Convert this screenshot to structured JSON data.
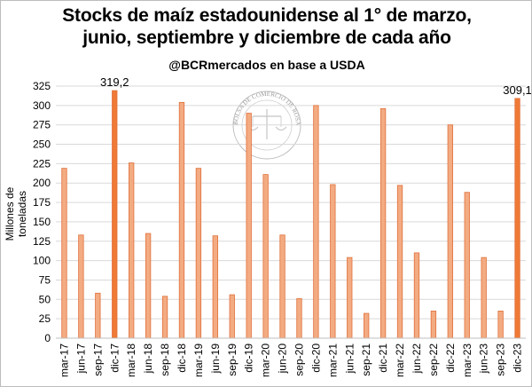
{
  "chart_data": {
    "type": "bar",
    "title_line1": "Stocks de maíz estadounidense al 1° de marzo,",
    "title_line2": "junio, septiembre y diciembre de cada año",
    "subtitle": "@BCRmercados en base a USDA",
    "ylabel": "Millones de toneladas",
    "xlabel": "",
    "ylim": [
      0,
      325
    ],
    "yticks": [
      0,
      25,
      50,
      75,
      100,
      125,
      150,
      175,
      200,
      225,
      250,
      275,
      300,
      325
    ],
    "grid": true,
    "legend": "none",
    "categories": [
      "mar-17",
      "jun-17",
      "sep-17",
      "dic-17",
      "mar-18",
      "jun-18",
      "sep-18",
      "dic-18",
      "mar-19",
      "jun-19",
      "sep-19",
      "dic-19",
      "mar-20",
      "jun-20",
      "sep-20",
      "dic-20",
      "mar-21",
      "jun-21",
      "sep-21",
      "dic-21",
      "mar-22",
      "jun-22",
      "sep-22",
      "dic-22",
      "mar-23",
      "jun-23",
      "sep-23",
      "dic-23"
    ],
    "values": [
      219,
      133,
      58,
      319.2,
      226,
      135,
      54,
      304,
      219,
      132,
      56,
      290,
      211,
      133,
      51,
      300,
      198,
      104,
      32,
      296,
      197,
      110,
      35,
      275,
      188,
      104,
      35,
      309.1
    ],
    "highlighted": [
      "dic-17",
      "dic-23"
    ],
    "data_labels": [
      {
        "category": "dic-17",
        "text": "319,2"
      },
      {
        "category": "dic-23",
        "text": "309,1"
      }
    ],
    "colors": {
      "bar": "#f3ab82",
      "bar_highlight": "#ef7a36",
      "bar_outline": "#e0703a",
      "grid": "#d9d9d9"
    }
  },
  "watermark": {
    "text": "BOLSA DE COMERCIO DE ROSARIO"
  }
}
